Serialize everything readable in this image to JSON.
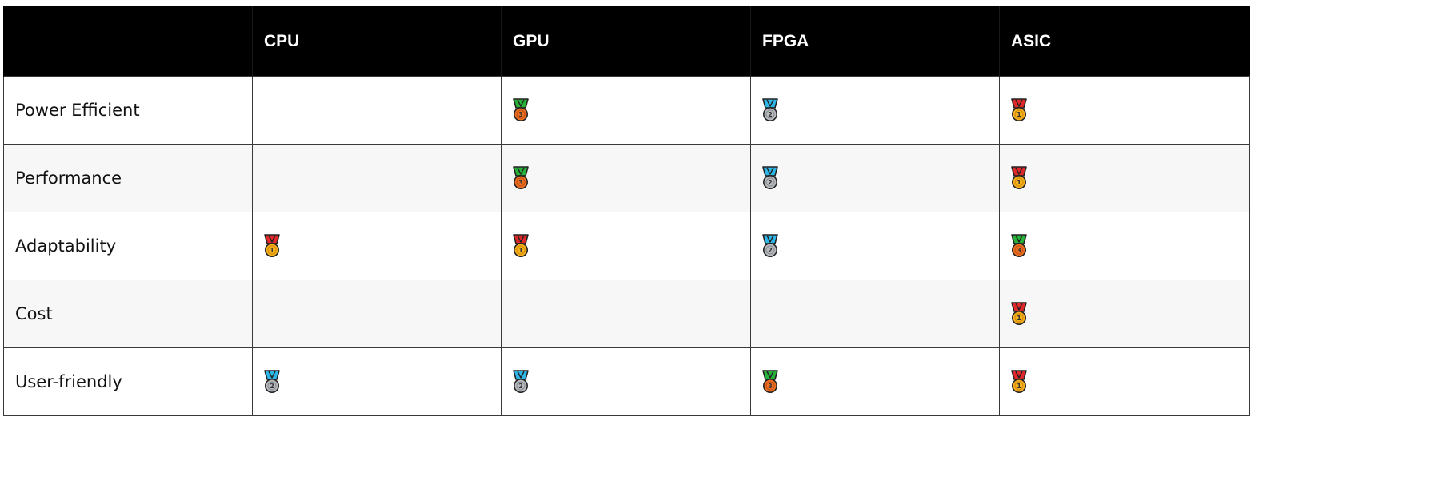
{
  "table": {
    "headers": [
      "",
      "CPU",
      "GPU",
      "FPGA",
      "ASIC"
    ],
    "rows": [
      {
        "label": "Power Efficient",
        "cells": [
          "",
          "3",
          "2",
          "1"
        ]
      },
      {
        "label": "Performance",
        "cells": [
          "",
          "3",
          "2",
          "1"
        ]
      },
      {
        "label": "Adaptability",
        "cells": [
          "1",
          "1",
          "2",
          "3"
        ]
      },
      {
        "label": "Cost",
        "cells": [
          "",
          "",
          "",
          "1"
        ]
      },
      {
        "label": "User-friendly",
        "cells": [
          "2",
          "2",
          "3",
          "1"
        ]
      }
    ]
  },
  "medals": {
    "1": {
      "name": "gold-medal-icon",
      "ribbon": "#e0282a",
      "disc": "#f5b21b",
      "rim": "#d98c0b",
      "numeral": "1"
    },
    "2": {
      "name": "silver-medal-icon",
      "ribbon": "#2fb6e8",
      "disc": "#b9bcc0",
      "rim": "#8d9094",
      "numeral": "2"
    },
    "3": {
      "name": "bronze-medal-icon",
      "ribbon": "#27b23a",
      "disc": "#f0701f",
      "rim": "#c5541a",
      "numeral": "3"
    }
  }
}
